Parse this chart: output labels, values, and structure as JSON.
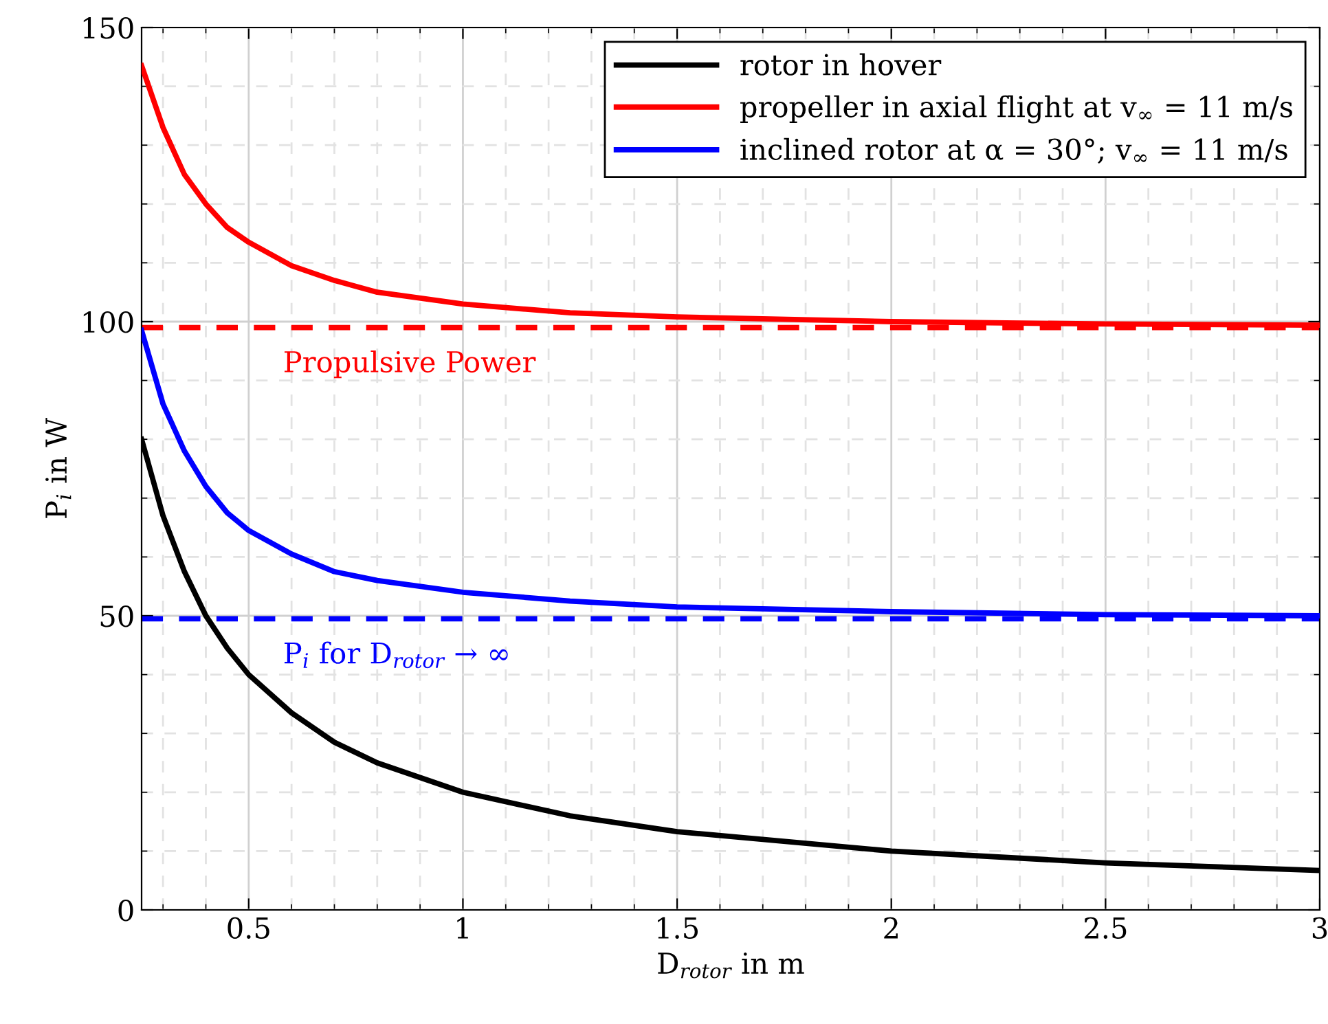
{
  "chart_data": {
    "type": "line",
    "xlabel": "D$_{rotor}$ in m",
    "ylabel": "P$_{i}$ in W",
    "x": [
      0.25,
      0.3,
      0.35,
      0.4,
      0.45,
      0.5,
      0.6,
      0.7,
      0.8,
      1,
      1.25,
      1.5,
      2,
      2.5,
      3
    ],
    "series": [
      {
        "name": "rotor in hover",
        "color": "#000000",
        "values": [
          80,
          67,
          57.5,
          50,
          44.5,
          40,
          33.5,
          28.5,
          25,
          20,
          16,
          13.3,
          10,
          8,
          6.7
        ]
      },
      {
        "name": "propeller in axial flight at v$_{∞}$ = 11 m/s",
        "color": "#ff0000",
        "values": [
          143.5,
          133,
          125,
          120,
          116,
          113.5,
          109.5,
          107,
          105,
          103,
          101.5,
          100.8,
          100,
          99.6,
          99.4
        ]
      },
      {
        "name": "inclined rotor at α = 30°; v$_{∞}$ = 11 m/s",
        "color": "#0000ff",
        "values": [
          98.5,
          86,
          78,
          72,
          67.5,
          64.5,
          60.5,
          57.5,
          56,
          54,
          52.5,
          51.5,
          50.7,
          50.2,
          50
        ]
      }
    ],
    "ref_lines": [
      {
        "axis": "y",
        "value": 99,
        "label": "Propulsive Power",
        "color": "#ff0000",
        "line_style": "dashed"
      },
      {
        "axis": "y",
        "value": 49.5,
        "label": "P$_{i}$ for D$_{rotor}$ → ∞",
        "color": "#0000ff",
        "line_style": "dashed"
      }
    ],
    "xlim": [
      0.25,
      3
    ],
    "xticks": [
      0.5,
      1,
      1.5,
      2,
      2.5,
      3
    ],
    "ylim": [
      0,
      150
    ],
    "yticks": [
      0,
      50,
      100,
      150
    ],
    "grid": true,
    "legend": "top right",
    "marker": "none",
    "line_style": "solid"
  }
}
